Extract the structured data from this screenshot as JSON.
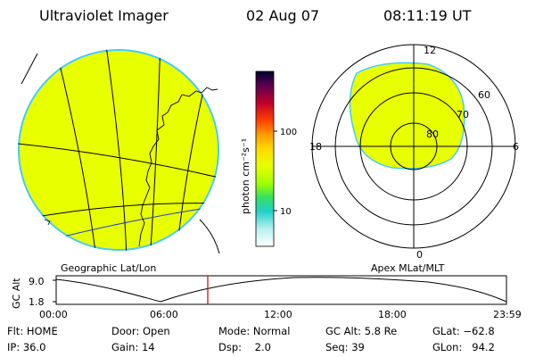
{
  "header": {
    "title": "Ultraviolet Imager",
    "date": "02 Aug 07",
    "time": "08:11:19 UT"
  },
  "colorbar": {
    "unit_label": "photon cm⁻²s⁻¹",
    "ticks": [
      "100",
      "10"
    ],
    "scale": "log",
    "colors": [
      "#000030",
      "#7a0070",
      "#e00000",
      "#ff8c00",
      "#ffd000",
      "#e8ff00",
      "#b0ff00",
      "#40e840",
      "#00c8c0",
      "#b8f0f0",
      "#ffffff"
    ]
  },
  "left_map": {
    "fill_color": "#e8ff00",
    "edge_color": "#44ccff",
    "caption": "Geographic Lat/Lon"
  },
  "polar_plot": {
    "caption": "Apex MLat/MLT",
    "mlt_labels": [
      "12",
      "18",
      "6",
      "0"
    ],
    "mlat_labels": [
      "60",
      "70",
      "80"
    ],
    "fill_color": "#e8ff00"
  },
  "altitude_strip": {
    "ylabel": "GC Alt",
    "yticks": [
      "9.0",
      "1.8"
    ],
    "xticks": [
      "00:00",
      "06:00",
      "12:00",
      "18:00",
      "23:59"
    ],
    "marker_color": "#cc0000"
  },
  "info": {
    "row1": [
      {
        "label": "Flt:",
        "value": "HOME"
      },
      {
        "label": "Door:",
        "value": "Open"
      },
      {
        "label": "Mode:",
        "value": "Normal"
      },
      {
        "label": "GC Alt:",
        "value": "5.8 Re"
      },
      {
        "label": "GLat:",
        "value": "−62.8"
      }
    ],
    "row2": [
      {
        "label": "IP:",
        "value": "36.0"
      },
      {
        "label": "Gain:",
        "value": "14"
      },
      {
        "label": "Dsp:",
        "value": "2.0"
      },
      {
        "label": "Seq:",
        "value": "39"
      },
      {
        "label": "GLon:",
        "value": "94.2"
      }
    ]
  }
}
